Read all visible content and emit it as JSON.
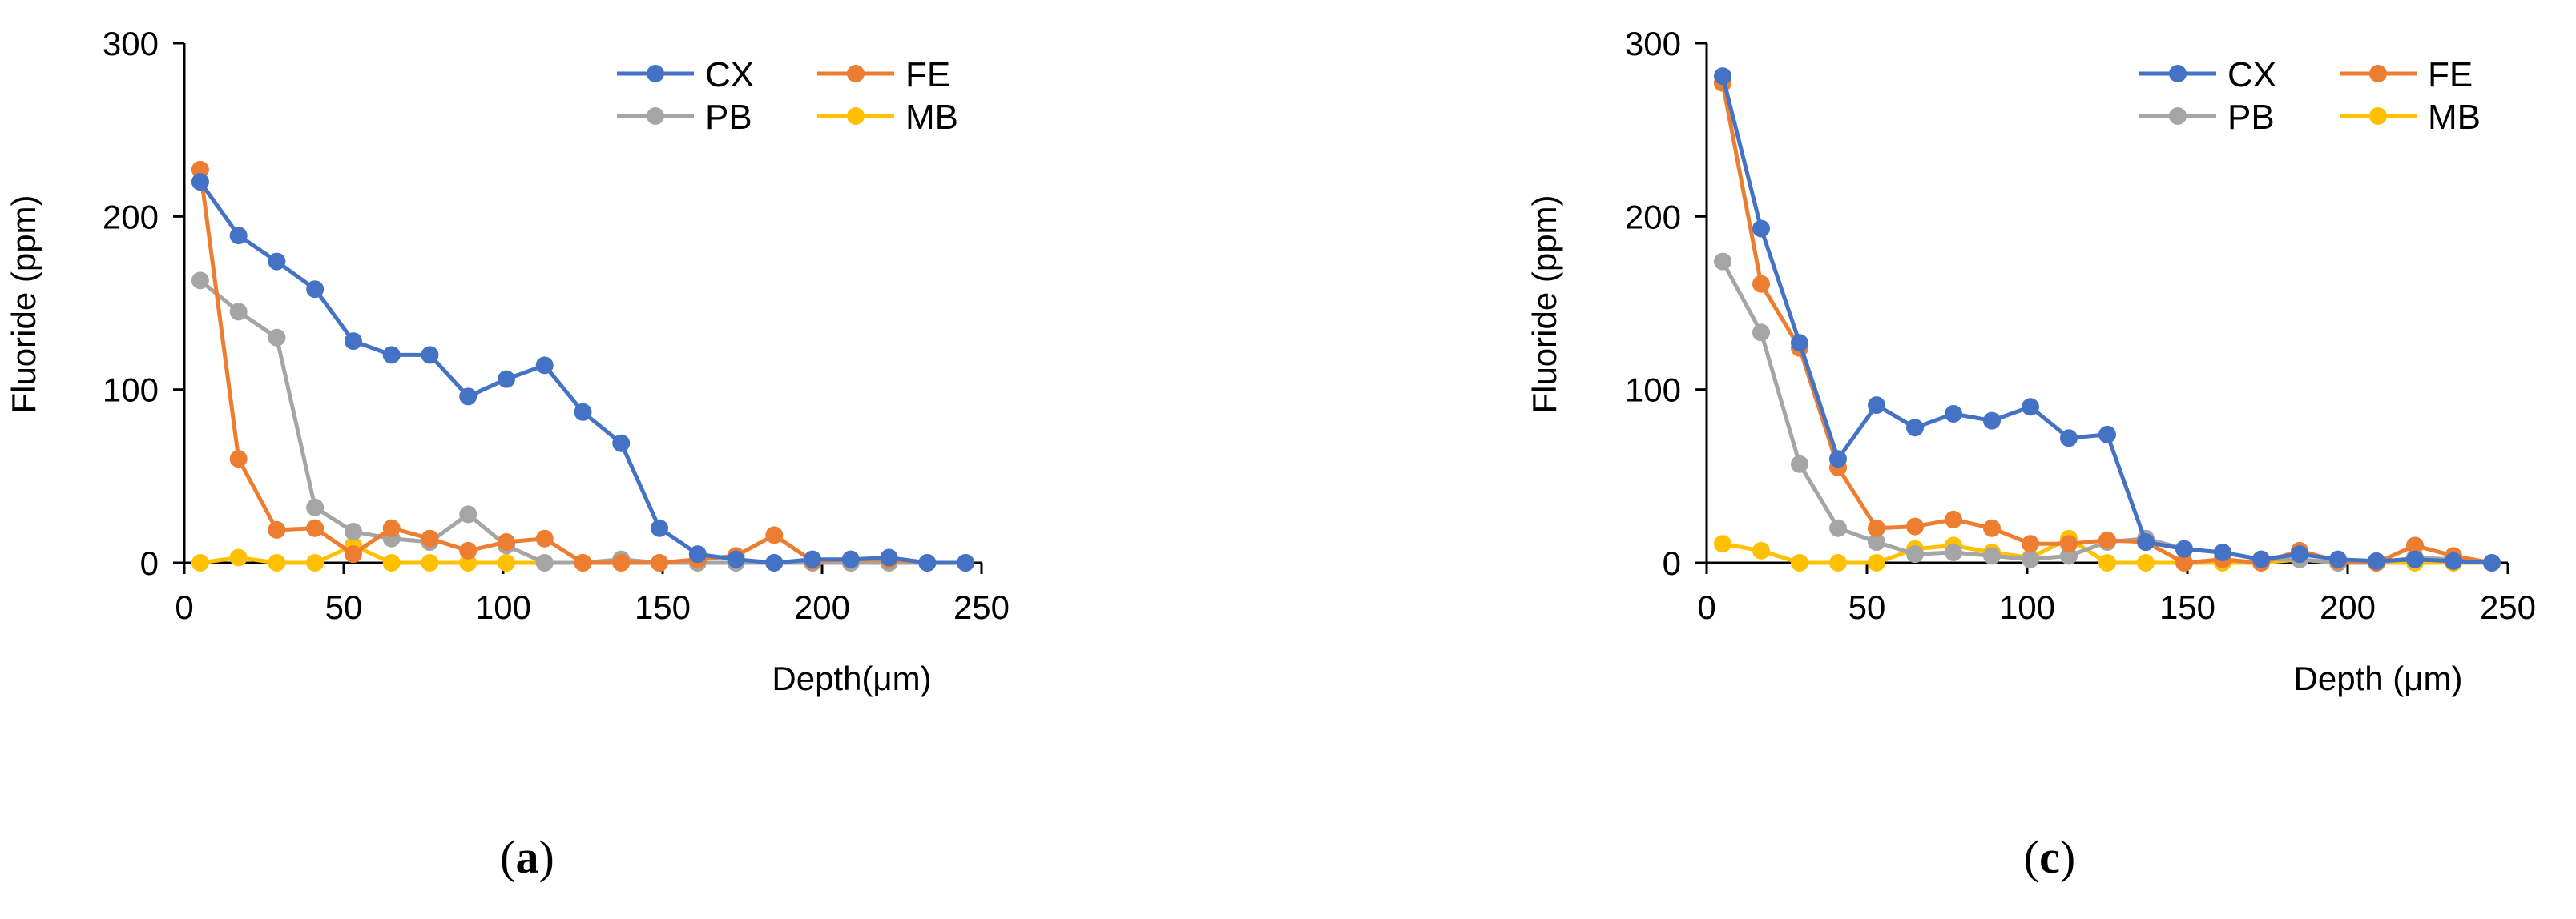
{
  "chart_data": [
    {
      "type": "line",
      "panel_label": "(a)",
      "panel_label_parts": [
        "(",
        "a",
        ")"
      ],
      "xlabel": "Depth(μm)",
      "ylabel": "Fluoride (ppm)",
      "xlim": [
        0,
        250
      ],
      "ylim": [
        0,
        300
      ],
      "xticks": [
        0,
        50,
        100,
        150,
        200,
        250
      ],
      "yticks": [
        0,
        100,
        200,
        300
      ],
      "grid": false,
      "legend_position": "top-right",
      "series": [
        {
          "name": "CX",
          "color": "#4472C4",
          "x": [
            5,
            17,
            29,
            41,
            53,
            65,
            77,
            89,
            101,
            113,
            125,
            137,
            149,
            161,
            173,
            185,
            197,
            209,
            221,
            233,
            245
          ],
          "y": [
            220,
            189,
            174,
            158,
            128,
            120,
            120,
            96,
            106,
            114,
            87,
            69,
            20,
            5,
            2,
            0,
            2,
            2,
            3,
            0,
            0
          ]
        },
        {
          "name": "FE",
          "color": "#ED7D31",
          "x": [
            5,
            17,
            29,
            41,
            53,
            65,
            77,
            89,
            101,
            113,
            125,
            137,
            149,
            161,
            173,
            185,
            197,
            209,
            221,
            233,
            245
          ],
          "y": [
            227,
            60,
            19,
            20,
            5,
            20,
            14,
            7,
            12,
            14,
            0,
            0,
            0,
            2,
            4,
            16,
            1,
            2,
            2,
            0,
            0
          ]
        },
        {
          "name": "PB",
          "color": "#A5A5A5",
          "x": [
            5,
            17,
            29,
            41,
            53,
            65,
            77,
            89,
            101,
            113,
            125,
            137,
            149,
            161,
            173,
            185,
            197,
            209,
            221,
            233,
            245
          ],
          "y": [
            163,
            145,
            130,
            32,
            18,
            14,
            12,
            28,
            10,
            0,
            0,
            2,
            0,
            0,
            0,
            0,
            0,
            0,
            0,
            0,
            0
          ]
        },
        {
          "name": "MB",
          "color": "#FFC000",
          "x": [
            5,
            17,
            29,
            41,
            53,
            65,
            77,
            89,
            101,
            113,
            125,
            137,
            149,
            161,
            173,
            185,
            197,
            209,
            221,
            233,
            245
          ],
          "y": [
            0,
            3,
            0,
            0,
            10,
            0,
            0,
            0,
            0,
            0,
            0,
            0,
            0,
            0,
            0,
            0,
            0,
            0,
            0,
            0,
            0
          ]
        }
      ]
    },
    {
      "type": "line",
      "panel_label": "(c)",
      "panel_label_parts": [
        "(",
        "c",
        ")"
      ],
      "xlabel": "Depth (μm)",
      "ylabel": "Fluoride (ppm)",
      "xlim": [
        0,
        250
      ],
      "ylim": [
        0,
        300
      ],
      "xticks": [
        0,
        50,
        100,
        150,
        200,
        250
      ],
      "yticks": [
        0,
        100,
        200,
        300
      ],
      "grid": false,
      "legend_position": "top-right",
      "series": [
        {
          "name": "CX",
          "color": "#4472C4",
          "x": [
            5,
            17,
            29,
            41,
            53,
            65,
            77,
            89,
            101,
            113,
            125,
            137,
            149,
            161,
            173,
            185,
            197,
            209,
            221,
            233,
            245
          ],
          "y": [
            281,
            193,
            127,
            60,
            91,
            78,
            86,
            82,
            90,
            72,
            74,
            12,
            8,
            6,
            2,
            5,
            2,
            1,
            2,
            1,
            0
          ]
        },
        {
          "name": "FE",
          "color": "#ED7D31",
          "x": [
            5,
            17,
            29,
            41,
            53,
            65,
            77,
            89,
            101,
            113,
            125,
            137,
            149,
            161,
            173,
            185,
            197,
            209,
            221,
            233,
            245
          ],
          "y": [
            277,
            161,
            124,
            55,
            20,
            21,
            25,
            20,
            11,
            11,
            13,
            12,
            0,
            2,
            0,
            7,
            1,
            0,
            10,
            4,
            0
          ]
        },
        {
          "name": "PB",
          "color": "#A5A5A5",
          "x": [
            5,
            17,
            29,
            41,
            53,
            65,
            77,
            89,
            101,
            113,
            125,
            137,
            149,
            161,
            173,
            185,
            197,
            209,
            221,
            233,
            245
          ],
          "y": [
            174,
            133,
            57,
            20,
            12,
            5,
            6,
            4,
            2,
            4,
            12,
            14,
            8,
            6,
            2,
            2,
            0,
            0,
            3,
            2,
            0
          ]
        },
        {
          "name": "MB",
          "color": "#FFC000",
          "x": [
            5,
            17,
            29,
            41,
            53,
            65,
            77,
            89,
            101,
            113,
            125,
            137,
            149,
            161,
            173,
            185,
            197,
            209,
            221,
            233,
            245
          ],
          "y": [
            11,
            7,
            0,
            0,
            0,
            8,
            10,
            6,
            3,
            14,
            0,
            0,
            0,
            0,
            0,
            2,
            0,
            0,
            0,
            0,
            0
          ]
        }
      ]
    }
  ]
}
